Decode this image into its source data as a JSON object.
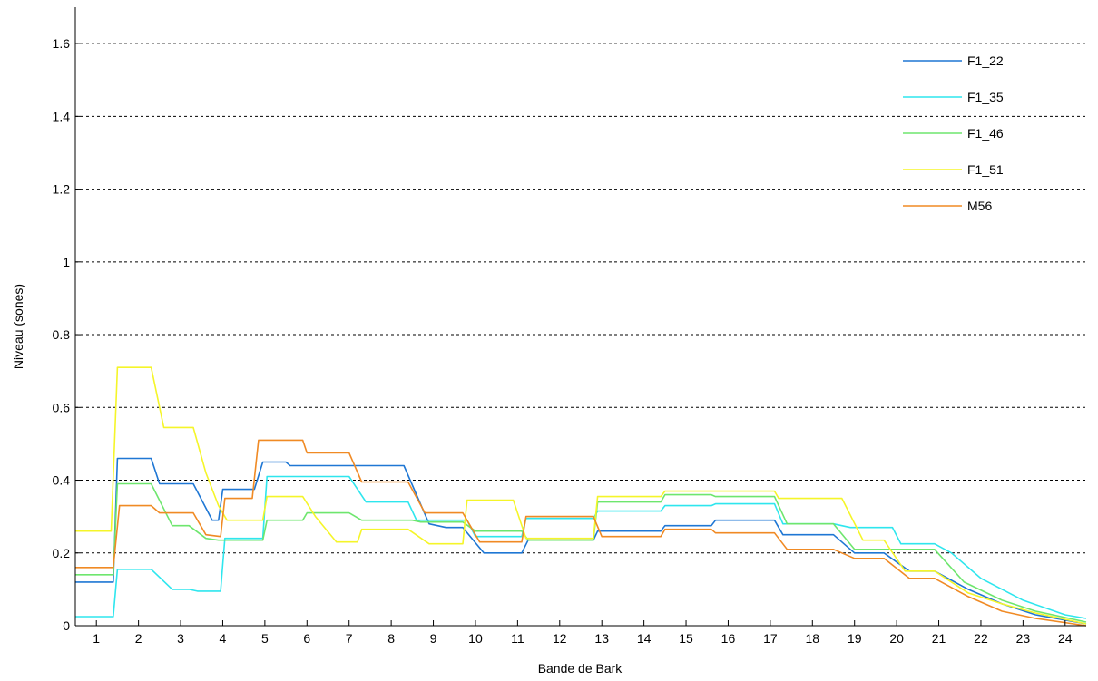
{
  "chart_data": {
    "type": "line",
    "title": "",
    "xlabel": "Bande de Bark",
    "ylabel": "Niveau (sones)",
    "xlim": [
      0.5,
      24.5
    ],
    "ylim": [
      0,
      1.7
    ],
    "xticks": [
      1,
      2,
      3,
      4,
      5,
      6,
      7,
      8,
      9,
      10,
      11,
      12,
      13,
      14,
      15,
      16,
      17,
      18,
      19,
      20,
      21,
      22,
      23,
      24
    ],
    "yticks": [
      0,
      0.2,
      0.4,
      0.6,
      0.8,
      1,
      1.2,
      1.4,
      1.6
    ],
    "ytick_labels": [
      "0",
      "0.2",
      "0.4",
      "0.6",
      "0.8",
      "1",
      "1.2",
      "1.4",
      "1.6"
    ],
    "grid": "horizontal-dashed",
    "legend_position": "top-right",
    "series": [
      {
        "name": "F1_22",
        "color": "#1f77d4",
        "points": [
          [
            0.5,
            0.12
          ],
          [
            1.4,
            0.12
          ],
          [
            1.5,
            0.46
          ],
          [
            2.3,
            0.46
          ],
          [
            2.5,
            0.39
          ],
          [
            3.3,
            0.39
          ],
          [
            3.75,
            0.29
          ],
          [
            3.9,
            0.29
          ],
          [
            4.0,
            0.375
          ],
          [
            4.75,
            0.375
          ],
          [
            4.95,
            0.45
          ],
          [
            5.5,
            0.45
          ],
          [
            5.6,
            0.44
          ],
          [
            8.3,
            0.44
          ],
          [
            8.9,
            0.28
          ],
          [
            9.3,
            0.27
          ],
          [
            9.7,
            0.27
          ],
          [
            10.2,
            0.2
          ],
          [
            11.1,
            0.2
          ],
          [
            11.25,
            0.235
          ],
          [
            12.8,
            0.235
          ],
          [
            12.9,
            0.26
          ],
          [
            14.4,
            0.26
          ],
          [
            14.5,
            0.275
          ],
          [
            15.6,
            0.275
          ],
          [
            15.7,
            0.29
          ],
          [
            17.1,
            0.29
          ],
          [
            17.3,
            0.25
          ],
          [
            18.5,
            0.25
          ],
          [
            19.0,
            0.2
          ],
          [
            19.7,
            0.2
          ],
          [
            20.3,
            0.15
          ],
          [
            20.9,
            0.15
          ],
          [
            21.7,
            0.1
          ],
          [
            22.5,
            0.06
          ],
          [
            23.3,
            0.03
          ],
          [
            24.5,
            0.005
          ]
        ]
      },
      {
        "name": "F1_35",
        "color": "#2ee6ee",
        "points": [
          [
            0.5,
            0.025
          ],
          [
            1.4,
            0.025
          ],
          [
            1.5,
            0.155
          ],
          [
            2.3,
            0.155
          ],
          [
            2.8,
            0.1
          ],
          [
            3.2,
            0.1
          ],
          [
            3.4,
            0.095
          ],
          [
            3.95,
            0.095
          ],
          [
            4.05,
            0.24
          ],
          [
            4.95,
            0.24
          ],
          [
            5.05,
            0.41
          ],
          [
            7.0,
            0.41
          ],
          [
            7.4,
            0.34
          ],
          [
            8.4,
            0.34
          ],
          [
            8.6,
            0.29
          ],
          [
            9.8,
            0.29
          ],
          [
            10.0,
            0.245
          ],
          [
            11.1,
            0.245
          ],
          [
            11.2,
            0.295
          ],
          [
            12.8,
            0.295
          ],
          [
            12.9,
            0.315
          ],
          [
            14.4,
            0.315
          ],
          [
            14.5,
            0.33
          ],
          [
            15.6,
            0.33
          ],
          [
            15.7,
            0.335
          ],
          [
            17.1,
            0.335
          ],
          [
            17.3,
            0.28
          ],
          [
            18.5,
            0.28
          ],
          [
            18.9,
            0.27
          ],
          [
            19.9,
            0.27
          ],
          [
            20.1,
            0.225
          ],
          [
            20.9,
            0.225
          ],
          [
            21.3,
            0.2
          ],
          [
            22.0,
            0.13
          ],
          [
            23.0,
            0.07
          ],
          [
            24.0,
            0.03
          ],
          [
            24.5,
            0.02
          ]
        ]
      },
      {
        "name": "F1_46",
        "color": "#6ee66e",
        "points": [
          [
            0.5,
            0.14
          ],
          [
            1.4,
            0.14
          ],
          [
            1.5,
            0.39
          ],
          [
            2.3,
            0.39
          ],
          [
            2.8,
            0.275
          ],
          [
            3.2,
            0.275
          ],
          [
            3.6,
            0.24
          ],
          [
            3.9,
            0.235
          ],
          [
            4.0,
            0.235
          ],
          [
            4.95,
            0.235
          ],
          [
            5.05,
            0.29
          ],
          [
            5.9,
            0.29
          ],
          [
            6.0,
            0.31
          ],
          [
            7.0,
            0.31
          ],
          [
            7.3,
            0.29
          ],
          [
            8.5,
            0.29
          ],
          [
            8.7,
            0.285
          ],
          [
            9.7,
            0.285
          ],
          [
            10.0,
            0.26
          ],
          [
            11.1,
            0.26
          ],
          [
            11.25,
            0.235
          ],
          [
            12.8,
            0.235
          ],
          [
            12.9,
            0.34
          ],
          [
            14.4,
            0.34
          ],
          [
            14.5,
            0.36
          ],
          [
            15.6,
            0.36
          ],
          [
            15.7,
            0.355
          ],
          [
            17.1,
            0.355
          ],
          [
            17.4,
            0.28
          ],
          [
            18.5,
            0.28
          ],
          [
            19.0,
            0.21
          ],
          [
            19.7,
            0.21
          ],
          [
            20.1,
            0.21
          ],
          [
            20.9,
            0.21
          ],
          [
            21.6,
            0.12
          ],
          [
            22.5,
            0.07
          ],
          [
            23.3,
            0.04
          ],
          [
            24.5,
            0.01
          ]
        ]
      },
      {
        "name": "F1_51",
        "color": "#f5f529",
        "points": [
          [
            0.5,
            0.26
          ],
          [
            1.35,
            0.26
          ],
          [
            1.5,
            0.71
          ],
          [
            2.3,
            0.71
          ],
          [
            2.6,
            0.545
          ],
          [
            3.3,
            0.545
          ],
          [
            3.6,
            0.42
          ],
          [
            3.9,
            0.33
          ],
          [
            4.1,
            0.29
          ],
          [
            4.95,
            0.29
          ],
          [
            5.05,
            0.355
          ],
          [
            5.9,
            0.355
          ],
          [
            6.2,
            0.3
          ],
          [
            6.7,
            0.23
          ],
          [
            7.2,
            0.23
          ],
          [
            7.3,
            0.265
          ],
          [
            8.4,
            0.265
          ],
          [
            8.9,
            0.225
          ],
          [
            9.7,
            0.225
          ],
          [
            9.8,
            0.345
          ],
          [
            10.9,
            0.345
          ],
          [
            11.2,
            0.24
          ],
          [
            12.8,
            0.24
          ],
          [
            12.9,
            0.355
          ],
          [
            14.4,
            0.355
          ],
          [
            14.5,
            0.37
          ],
          [
            17.1,
            0.37
          ],
          [
            17.2,
            0.35
          ],
          [
            18.7,
            0.35
          ],
          [
            19.2,
            0.235
          ],
          [
            19.7,
            0.235
          ],
          [
            20.2,
            0.15
          ],
          [
            20.9,
            0.15
          ],
          [
            21.7,
            0.09
          ],
          [
            22.5,
            0.06
          ],
          [
            23.3,
            0.035
          ],
          [
            24.5,
            0.005
          ]
        ]
      },
      {
        "name": "M56",
        "color": "#f08a24",
        "points": [
          [
            0.5,
            0.16
          ],
          [
            1.4,
            0.16
          ],
          [
            1.55,
            0.33
          ],
          [
            2.3,
            0.33
          ],
          [
            2.5,
            0.31
          ],
          [
            3.3,
            0.31
          ],
          [
            3.6,
            0.25
          ],
          [
            3.95,
            0.245
          ],
          [
            4.05,
            0.35
          ],
          [
            4.7,
            0.35
          ],
          [
            4.85,
            0.51
          ],
          [
            5.9,
            0.51
          ],
          [
            6.0,
            0.475
          ],
          [
            7.0,
            0.475
          ],
          [
            7.3,
            0.395
          ],
          [
            8.4,
            0.395
          ],
          [
            8.8,
            0.31
          ],
          [
            9.7,
            0.31
          ],
          [
            10.1,
            0.23
          ],
          [
            11.1,
            0.23
          ],
          [
            11.2,
            0.3
          ],
          [
            12.8,
            0.3
          ],
          [
            13.0,
            0.245
          ],
          [
            14.4,
            0.245
          ],
          [
            14.5,
            0.265
          ],
          [
            15.6,
            0.265
          ],
          [
            15.7,
            0.255
          ],
          [
            17.1,
            0.255
          ],
          [
            17.4,
            0.21
          ],
          [
            18.5,
            0.21
          ],
          [
            19.0,
            0.185
          ],
          [
            19.7,
            0.185
          ],
          [
            20.3,
            0.13
          ],
          [
            20.9,
            0.13
          ],
          [
            21.7,
            0.08
          ],
          [
            22.5,
            0.04
          ],
          [
            23.3,
            0.02
          ],
          [
            24.5,
            0.0
          ]
        ]
      }
    ]
  }
}
